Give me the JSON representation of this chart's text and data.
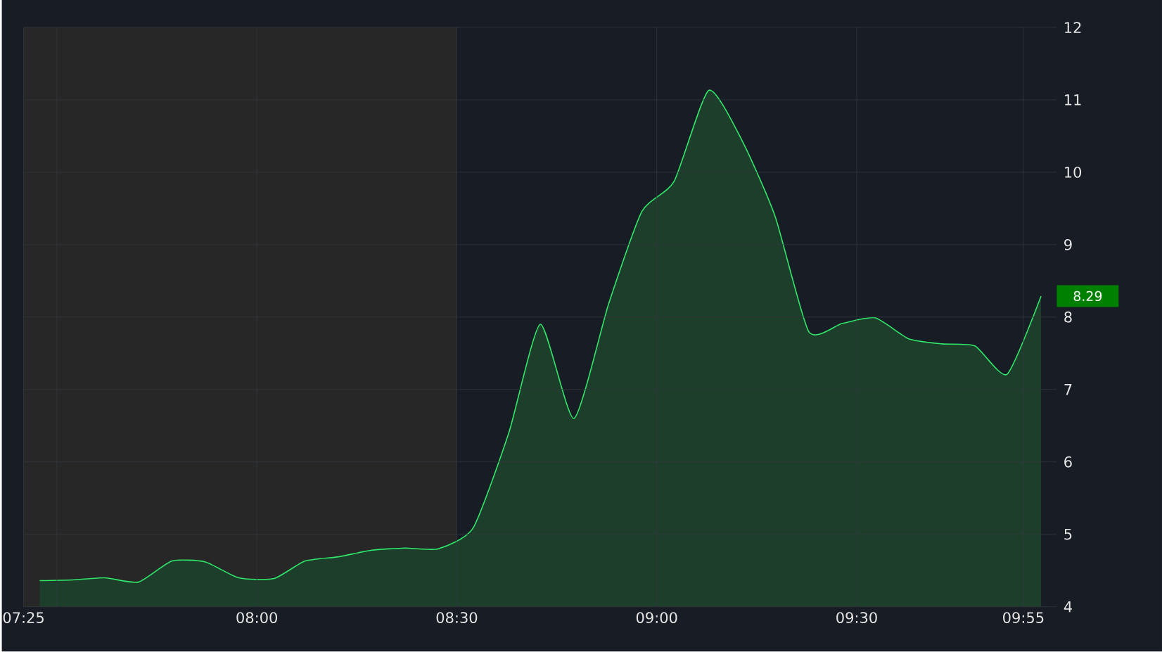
{
  "chart_data": {
    "type": "area",
    "color": "#2fe86a",
    "x": [
      7.457,
      7.541,
      7.62,
      7.704,
      7.787,
      7.87,
      7.954,
      8.043,
      8.12,
      8.204,
      8.287,
      8.37,
      8.454,
      8.541,
      8.63,
      8.709,
      8.793,
      8.88,
      8.963,
      9.043,
      9.13,
      9.213,
      9.296,
      9.38,
      9.463,
      9.546,
      9.63,
      9.713,
      9.796,
      9.876,
      9.961
    ],
    "values": [
      4.36,
      4.37,
      4.4,
      4.34,
      4.63,
      4.62,
      4.4,
      4.39,
      4.63,
      4.69,
      4.78,
      4.81,
      4.8,
      5.09,
      6.4,
      7.9,
      6.6,
      8.19,
      9.46,
      9.87,
      11.13,
      10.44,
      9.39,
      7.8,
      7.91,
      7.99,
      7.7,
      7.63,
      7.6,
      7.21,
      8.29
    ],
    "xlim": [
      7.4167,
      10.0
    ],
    "xticks": [
      {
        "value": 7.4167,
        "label": "07:25"
      },
      {
        "value": 7.5,
        "label": null
      },
      {
        "value": 8,
        "label": "08:00"
      },
      {
        "value": 8.5,
        "label": "08:30"
      },
      {
        "value": 9,
        "label": "09:00"
      },
      {
        "value": 9.5,
        "label": "09:30"
      },
      {
        "value": 9.9167,
        "label": "09:55"
      }
    ],
    "ylim": [
      4,
      12
    ],
    "yticks": [
      4,
      5,
      6,
      7,
      8,
      9,
      10,
      11,
      12
    ],
    "grid": true,
    "bands": [
      {
        "axis": "x",
        "from": 7.4167,
        "to": 8.5,
        "color": "#272727"
      }
    ],
    "annotations": [
      "8.29"
    ]
  }
}
